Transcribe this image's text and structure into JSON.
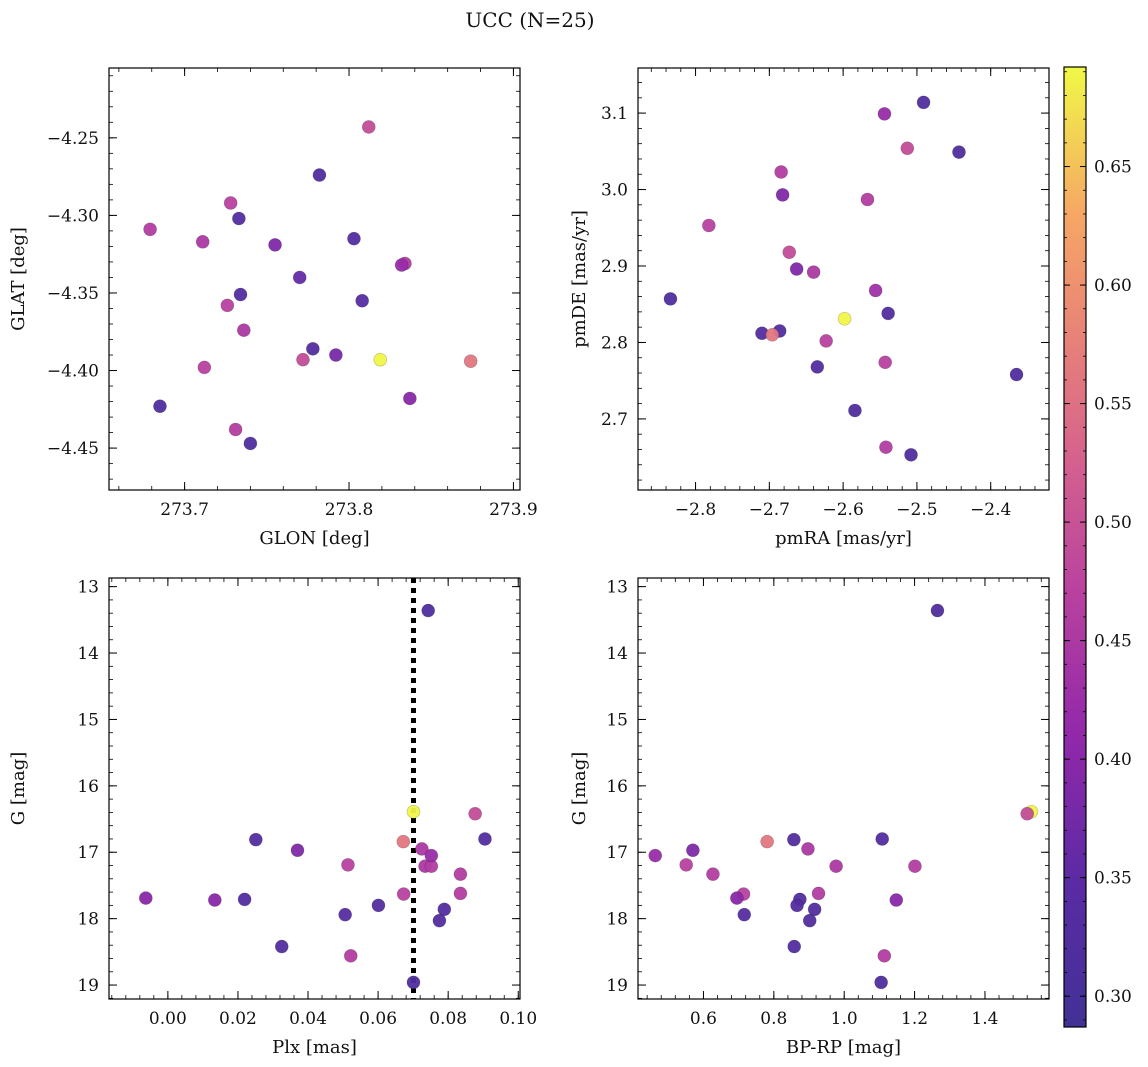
{
  "figure": {
    "title": "UCC (N=25)"
  },
  "colorbar": {
    "min": 0.287,
    "max": 0.692,
    "ticks": [
      0.3,
      0.35,
      0.4,
      0.45,
      0.5,
      0.55,
      0.6,
      0.65
    ],
    "tick_labels": [
      "0.30",
      "0.35",
      "0.40",
      "0.45",
      "0.50",
      "0.55",
      "0.60",
      "0.65"
    ],
    "colormap": "plasma"
  },
  "chart_data": [
    {
      "type": "scatter",
      "name": "glon-glat",
      "xlabel": "GLON [deg]",
      "ylabel": "GLAT [deg]",
      "xlim": [
        273.654,
        273.904
      ],
      "ylim": [
        -4.477,
        -4.205
      ],
      "xticks": [
        273.7,
        273.8,
        273.9
      ],
      "xtick_labels": [
        "273.7",
        "273.8",
        "273.9"
      ],
      "yticks": [
        -4.45,
        -4.4,
        -4.35,
        -4.3,
        -4.25
      ],
      "ytick_labels": [
        "−4.45",
        "−4.40",
        "−4.35",
        "−4.30",
        "−4.25"
      ],
      "x": [
        273.812,
        273.782,
        273.728,
        273.733,
        273.679,
        273.711,
        273.755,
        273.803,
        273.834,
        273.832,
        273.77,
        273.734,
        273.808,
        273.726,
        273.736,
        273.778,
        273.792,
        273.772,
        273.819,
        273.874,
        273.712,
        273.837,
        273.685,
        273.731,
        273.74
      ],
      "y": [
        -4.243,
        -4.274,
        -4.292,
        -4.302,
        -4.309,
        -4.317,
        -4.319,
        -4.315,
        -4.331,
        -4.332,
        -4.34,
        -4.351,
        -4.355,
        -4.358,
        -4.374,
        -4.386,
        -4.39,
        -4.393,
        -4.393,
        -4.394,
        -4.398,
        -4.418,
        -4.423,
        -4.438,
        -4.447
      ],
      "c": [
        0.49,
        0.32,
        0.47,
        0.33,
        0.46,
        0.45,
        0.39,
        0.33,
        0.46,
        0.42,
        0.36,
        0.33,
        0.34,
        0.47,
        0.45,
        0.33,
        0.38,
        0.49,
        0.69,
        0.56,
        0.47,
        0.4,
        0.32,
        0.46,
        0.32
      ]
    },
    {
      "type": "scatter",
      "name": "pmra-pmde",
      "xlabel": "pmRA [mas/yr]",
      "ylabel": "pmDE [mas/yr]",
      "xlim": [
        -2.878,
        -2.321
      ],
      "ylim": [
        2.607,
        3.159
      ],
      "xticks": [
        -2.8,
        -2.7,
        -2.6,
        -2.5,
        -2.4
      ],
      "xtick_labels": [
        "−2.8",
        "−2.7",
        "−2.6",
        "−2.5",
        "−2.4"
      ],
      "yticks": [
        2.7,
        2.8,
        2.9,
        3.0,
        3.1
      ],
      "ytick_labels": [
        "2.7",
        "2.8",
        "2.9",
        "3.0",
        "3.1"
      ],
      "x": [
        -2.491,
        -2.544,
        -2.513,
        -2.443,
        -2.684,
        -2.682,
        -2.567,
        -2.782,
        -2.673,
        -2.663,
        -2.64,
        -2.834,
        -2.556,
        -2.539,
        -2.598,
        -2.71,
        -2.686,
        -2.696,
        -2.623,
        -2.635,
        -2.543,
        -2.365,
        -2.584,
        -2.542,
        -2.508
      ],
      "y": [
        3.114,
        3.099,
        3.054,
        3.049,
        3.023,
        2.993,
        2.987,
        2.953,
        2.918,
        2.896,
        2.892,
        2.857,
        2.868,
        2.838,
        2.831,
        2.812,
        2.815,
        2.81,
        2.802,
        2.768,
        2.774,
        2.758,
        2.711,
        2.663,
        2.653
      ],
      "c": [
        0.33,
        0.42,
        0.49,
        0.32,
        0.46,
        0.39,
        0.46,
        0.47,
        0.49,
        0.39,
        0.45,
        0.32,
        0.43,
        0.33,
        0.69,
        0.33,
        0.33,
        0.56,
        0.47,
        0.33,
        0.47,
        0.32,
        0.32,
        0.46,
        0.32
      ]
    },
    {
      "type": "scatter",
      "name": "plx-g",
      "xlabel": "Plx [mas]",
      "ylabel": "G [mag]",
      "xlim": [
        -0.0168,
        0.1005
      ],
      "ylim": [
        19.21,
        12.87
      ],
      "xticks": [
        0.0,
        0.02,
        0.04,
        0.06,
        0.08,
        0.1
      ],
      "xtick_labels": [
        "0.00",
        "0.02",
        "0.04",
        "0.06",
        "0.08",
        "0.10"
      ],
      "yticks": [
        13,
        14,
        15,
        16,
        17,
        18,
        19
      ],
      "ytick_labels": [
        "13",
        "14",
        "15",
        "16",
        "17",
        "18",
        "19"
      ],
      "vline": 0.0701,
      "x": [
        0.0743,
        0.0701,
        0.0877,
        0.0672,
        0.0251,
        0.0905,
        0.037,
        0.0725,
        0.0514,
        0.0734,
        0.0752,
        0.0835,
        -0.0063,
        0.0134,
        0.0219,
        0.0673,
        0.0835,
        0.0601,
        0.0789,
        0.0506,
        0.0775,
        0.0325,
        0.0522,
        0.0701,
        0.0752
      ],
      "y": [
        13.36,
        16.39,
        16.42,
        16.84,
        16.81,
        16.8,
        16.97,
        16.95,
        17.19,
        17.21,
        17.21,
        17.33,
        17.69,
        17.72,
        17.71,
        17.63,
        17.62,
        17.8,
        17.86,
        17.94,
        18.03,
        18.42,
        18.56,
        18.96,
        17.05
      ],
      "c": [
        0.32,
        0.69,
        0.49,
        0.56,
        0.33,
        0.33,
        0.39,
        0.45,
        0.47,
        0.45,
        0.46,
        0.46,
        0.4,
        0.4,
        0.33,
        0.47,
        0.46,
        0.33,
        0.33,
        0.34,
        0.33,
        0.33,
        0.46,
        0.32,
        0.42
      ]
    },
    {
      "type": "scatter",
      "name": "bprp-g",
      "xlabel": "BP-RP [mag]",
      "ylabel": "G [mag]",
      "xlim": [
        0.414,
        1.582
      ],
      "ylim": [
        19.21,
        12.87
      ],
      "xticks": [
        0.6,
        0.8,
        1.0,
        1.2,
        1.4
      ],
      "xtick_labels": [
        "0.6",
        "0.8",
        "1.0",
        "1.2",
        "1.4"
      ],
      "yticks": [
        13,
        14,
        15,
        16,
        17,
        18,
        19
      ],
      "ytick_labels": [
        "13",
        "14",
        "15",
        "16",
        "17",
        "18",
        "19"
      ],
      "x": [
        1.265,
        1.532,
        1.52,
        0.781,
        0.857,
        1.108,
        0.57,
        0.897,
        0.463,
        0.551,
        0.977,
        1.201,
        0.627,
        0.927,
        0.714,
        0.695,
        0.874,
        0.866,
        0.916,
        0.716,
        0.902,
        1.148,
        1.114,
        0.858,
        1.105
      ],
      "y": [
        13.36,
        16.39,
        16.42,
        16.84,
        16.81,
        16.8,
        16.97,
        16.95,
        17.05,
        17.19,
        17.21,
        17.21,
        17.33,
        17.62,
        17.63,
        17.69,
        17.71,
        17.8,
        17.86,
        17.94,
        18.03,
        17.72,
        18.56,
        18.42,
        18.96
      ],
      "c": [
        0.32,
        0.69,
        0.49,
        0.56,
        0.33,
        0.33,
        0.39,
        0.45,
        0.42,
        0.47,
        0.45,
        0.46,
        0.46,
        0.46,
        0.47,
        0.4,
        0.33,
        0.33,
        0.33,
        0.34,
        0.33,
        0.4,
        0.46,
        0.33,
        0.32
      ]
    }
  ]
}
